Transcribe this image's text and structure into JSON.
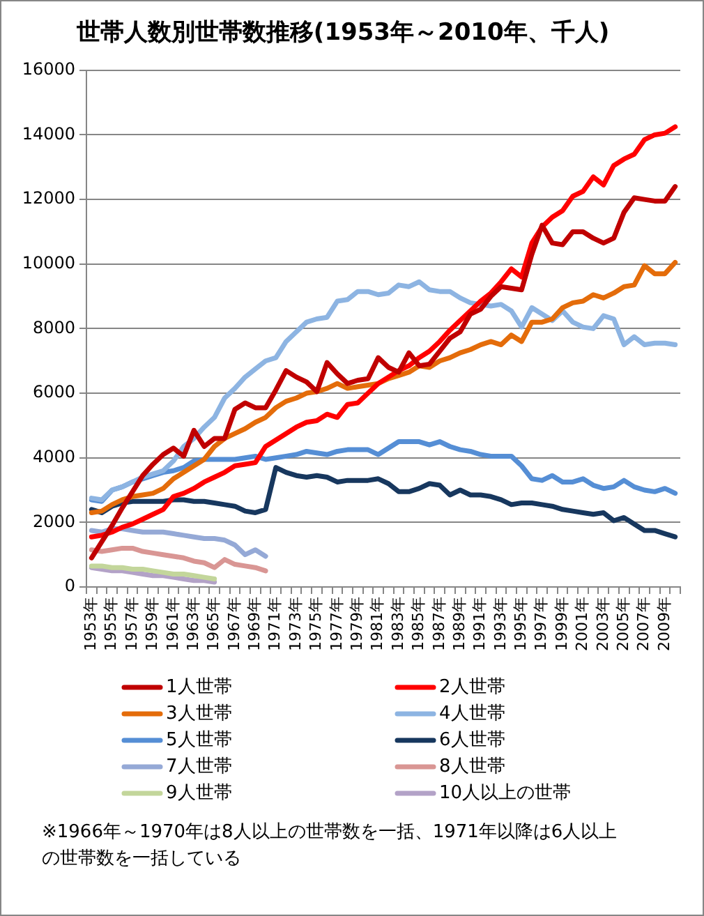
{
  "chart_data": {
    "type": "line",
    "title": "世帯人数別世帯数推移(1953年～2010年、千人)",
    "categories": [
      "1953年",
      null,
      "1955年",
      null,
      "1957年",
      null,
      "1959年",
      null,
      "1961年",
      null,
      "1963年",
      null,
      "1965年",
      null,
      "1967年",
      null,
      "1969年",
      null,
      "1971年",
      null,
      "1973年",
      null,
      "1975年",
      null,
      "1977年",
      null,
      "1979年",
      null,
      "1981年",
      null,
      "1983年",
      null,
      "1985年",
      null,
      "1987年",
      null,
      "1989年",
      null,
      "1991年",
      null,
      "1993年",
      null,
      "1995年",
      null,
      "1997年",
      null,
      "1999年",
      null,
      "2001年",
      null,
      "2003年",
      null,
      "2005年",
      null,
      "2007年",
      null,
      "2009年",
      null
    ],
    "series": [
      {
        "name": "1人世帯",
        "color": "#c00000",
        "values": [
          900,
          1400,
          1900,
          2450,
          2950,
          3450,
          3800,
          4100,
          4300,
          4050,
          4850,
          4350,
          4600,
          4600,
          5500,
          5700,
          5550,
          5550,
          6100,
          6700,
          6500,
          6350,
          6050,
          6950,
          6600,
          6300,
          6400,
          6450,
          7100,
          6800,
          6650,
          7250,
          6850,
          6900,
          7300,
          7700,
          7900,
          8450,
          8600,
          9000,
          9300,
          9250,
          9200,
          10300,
          11200,
          10650,
          10600,
          11000,
          11000,
          10800,
          10650,
          10800,
          11600,
          12050,
          12000,
          11950,
          11950,
          12400
        ]
      },
      {
        "name": "2人世帯",
        "color": "#ff0000",
        "values": [
          1550,
          1600,
          1700,
          1850,
          1950,
          2100,
          2250,
          2400,
          2800,
          2900,
          3050,
          3250,
          3400,
          3550,
          3750,
          3800,
          3850,
          4350,
          4550,
          4750,
          4950,
          5100,
          5150,
          5350,
          5250,
          5650,
          5700,
          6000,
          6300,
          6500,
          6700,
          6850,
          7100,
          7300,
          7600,
          7950,
          8250,
          8550,
          8850,
          9100,
          9450,
          9850,
          9600,
          10650,
          11150,
          11450,
          11650,
          12100,
          12250,
          12700,
          12450,
          13050,
          13250,
          13400,
          13850,
          14000,
          14050,
          14250
        ]
      },
      {
        "name": "3人世帯",
        "color": "#e46c0a",
        "values": [
          2300,
          2350,
          2550,
          2700,
          2800,
          2850,
          2900,
          3050,
          3350,
          3550,
          3750,
          3950,
          4350,
          4600,
          4750,
          4900,
          5100,
          5250,
          5550,
          5750,
          5850,
          6000,
          6050,
          6150,
          6300,
          6150,
          6200,
          6250,
          6300,
          6450,
          6550,
          6650,
          6850,
          6800,
          7000,
          7100,
          7250,
          7350,
          7500,
          7600,
          7500,
          7800,
          7600,
          8200,
          8200,
          8300,
          8650,
          8800,
          8850,
          9050,
          8950,
          9100,
          9300,
          9350,
          9950,
          9700,
          9700,
          10050
        ]
      },
      {
        "name": "4人世帯",
        "color": "#8db4e2",
        "values": [
          2750,
          2700,
          3000,
          3100,
          3250,
          3400,
          3500,
          3600,
          3900,
          4350,
          4600,
          4950,
          5250,
          5850,
          6150,
          6500,
          6750,
          7000,
          7100,
          7600,
          7900,
          8200,
          8300,
          8350,
          8850,
          8900,
          9150,
          9150,
          9050,
          9100,
          9350,
          9300,
          9450,
          9200,
          9150,
          9150,
          8950,
          8800,
          8750,
          8700,
          8750,
          8550,
          8050,
          8650,
          8450,
          8250,
          8550,
          8200,
          8050,
          8000,
          8400,
          8300,
          7500,
          7750,
          7500,
          7550,
          7550,
          7500
        ]
      },
      {
        "name": "5人世帯",
        "color": "#558ed5",
        "values": [
          2700,
          2650,
          3000,
          3100,
          3250,
          3350,
          3450,
          3550,
          3600,
          3700,
          3900,
          3950,
          3950,
          3950,
          3950,
          4000,
          4050,
          3950,
          4000,
          4050,
          4100,
          4200,
          4150,
          4100,
          4200,
          4250,
          4250,
          4250,
          4100,
          4300,
          4500,
          4500,
          4500,
          4400,
          4500,
          4350,
          4250,
          4200,
          4100,
          4050,
          4050,
          4050,
          3750,
          3350,
          3300,
          3450,
          3250,
          3250,
          3350,
          3150,
          3050,
          3100,
          3300,
          3100,
          3000,
          2950,
          3050,
          2900
        ]
      },
      {
        "name": "6人世帯",
        "color": "#17375e",
        "values": [
          2400,
          2300,
          2500,
          2600,
          2650,
          2650,
          2650,
          2650,
          2700,
          2700,
          2650,
          2650,
          2600,
          2550,
          2500,
          2350,
          2300,
          2400,
          3700,
          3550,
          3450,
          3400,
          3450,
          3400,
          3250,
          3300,
          3300,
          3300,
          3350,
          3200,
          2950,
          2950,
          3050,
          3200,
          3150,
          2850,
          3000,
          2850,
          2850,
          2800,
          2700,
          2550,
          2600,
          2600,
          2550,
          2500,
          2400,
          2350,
          2300,
          2250,
          2300,
          2050,
          2150,
          1950,
          1750,
          1750,
          1650,
          1550
        ]
      },
      {
        "name": "7人世帯",
        "color": "#95a9d6",
        "values": [
          1750,
          1700,
          1800,
          1800,
          1750,
          1700,
          1700,
          1700,
          1650,
          1600,
          1550,
          1500,
          1500,
          1450,
          1300,
          1000,
          1150,
          950,
          null,
          null,
          null,
          null,
          null,
          null,
          null,
          null,
          null,
          null,
          null,
          null,
          null,
          null,
          null,
          null,
          null,
          null,
          null,
          null,
          null,
          null,
          null,
          null,
          null,
          null,
          null,
          null,
          null,
          null,
          null,
          null,
          null,
          null,
          null,
          null,
          null,
          null,
          null,
          null
        ]
      },
      {
        "name": "8人世帯",
        "color": "#d99694",
        "values": [
          1150,
          1100,
          1150,
          1200,
          1200,
          1100,
          1050,
          1000,
          950,
          900,
          800,
          750,
          600,
          850,
          700,
          650,
          600,
          500,
          null,
          null,
          null,
          null,
          null,
          null,
          null,
          null,
          null,
          null,
          null,
          null,
          null,
          null,
          null,
          null,
          null,
          null,
          null,
          null,
          null,
          null,
          null,
          null,
          null,
          null,
          null,
          null,
          null,
          null,
          null,
          null,
          null,
          null,
          null,
          null,
          null,
          null,
          null,
          null
        ]
      },
      {
        "name": "9人世帯",
        "color": "#c3d69b",
        "values": [
          650,
          650,
          600,
          600,
          550,
          550,
          500,
          450,
          400,
          400,
          350,
          300,
          250,
          null,
          null,
          null,
          null,
          null,
          null,
          null,
          null,
          null,
          null,
          null,
          null,
          null,
          null,
          null,
          null,
          null,
          null,
          null,
          null,
          null,
          null,
          null,
          null,
          null,
          null,
          null,
          null,
          null,
          null,
          null,
          null,
          null,
          null,
          null,
          null,
          null,
          null,
          null,
          null,
          null,
          null,
          null,
          null,
          null
        ]
      },
      {
        "name": "10人以上の世帯",
        "color": "#b3a2c7",
        "values": [
          600,
          550,
          500,
          500,
          450,
          400,
          350,
          350,
          300,
          250,
          200,
          200,
          150,
          null,
          null,
          null,
          null,
          null,
          null,
          null,
          null,
          null,
          null,
          null,
          null,
          null,
          null,
          null,
          null,
          null,
          null,
          null,
          null,
          null,
          null,
          null,
          null,
          null,
          null,
          null,
          null,
          null,
          null,
          null,
          null,
          null,
          null,
          null,
          null,
          null,
          null,
          null,
          null,
          null,
          null,
          null,
          null,
          null
        ]
      }
    ],
    "ylim": [
      0,
      16000
    ],
    "yticks": [
      0,
      2000,
      4000,
      6000,
      8000,
      10000,
      12000,
      14000,
      16000
    ],
    "grid": "y",
    "legend": "bottom",
    "line_style": "solid",
    "annotations": [
      "※1966年～1970年は8人以上の世帯数を一括、1971年以降は6人以上の世帯数を一括している"
    ]
  }
}
